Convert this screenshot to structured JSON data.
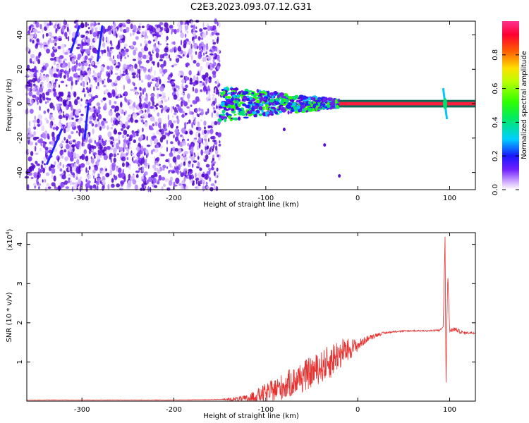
{
  "title": "C2E3.2023.093.07.12.G31",
  "colors": {
    "axis": "#000000",
    "snr_line": "#e8302f",
    "colormap": [
      "#ffffff",
      "#e0c8ff",
      "#a060ff",
      "#5a00e0",
      "#2a20ff",
      "#00c8ff",
      "#00e070",
      "#30ff00",
      "#ffe000",
      "#ff7000",
      "#ff0040",
      "#ff3090"
    ]
  },
  "chart_data": [
    {
      "type": "heatmap",
      "xlabel": "Height of straight line (km)",
      "ylabel": "Frequency (Hz)",
      "xlim": [
        -360,
        128
      ],
      "ylim": [
        -50,
        48
      ],
      "xticks": [
        -300,
        -200,
        -100,
        0,
        100
      ],
      "yticks": [
        -40,
        -20,
        0,
        20,
        40
      ],
      "xticklabels": [
        "-300",
        "-200",
        "-100",
        "0",
        "100"
      ],
      "yticklabels": [
        "-40",
        "-20",
        "0",
        "20",
        "40"
      ],
      "colorbar": {
        "label": "Normalized spectral amplitude",
        "range": [
          0,
          1
        ],
        "ticks": [
          0.0,
          0.2,
          0.4,
          0.6,
          0.8
        ],
        "ticklabels": [
          "0.0",
          "0.2",
          "0.4",
          "0.6",
          "0.8"
        ]
      },
      "features": {
        "noise_region_x": [
          -360,
          -150
        ],
        "scatter_region_x": [
          -150,
          -20
        ],
        "carrier_line": {
          "x": [
            -20,
            128
          ],
          "frequency": 0,
          "amplitude": 1.0
        },
        "spike_at_x": 95
      }
    },
    {
      "type": "line",
      "xlabel": "Height of straight line (km)",
      "ylabel": "SNR (10 * v/v)",
      "yscale_label": "(x10",
      "yscale_exp": "4",
      "yscale_close": ")",
      "xlim": [
        -360,
        128
      ],
      "ylim": [
        0,
        4.3
      ],
      "xticks": [
        -300,
        -200,
        -100,
        0,
        100
      ],
      "yticks": [
        1,
        2,
        3,
        4
      ],
      "xticklabels": [
        "-300",
        "-200",
        "-100",
        "0",
        "100"
      ],
      "yticklabels": [
        "1",
        "2",
        "3",
        "4"
      ],
      "series": [
        {
          "x": [
            -360,
            -300,
            -200,
            -150,
            -120,
            -100,
            -80,
            -60,
            -40,
            -30,
            -20,
            -10,
            0,
            10,
            20,
            30,
            40,
            60,
            80,
            90,
            93,
            95,
            96,
            97,
            98,
            100,
            105,
            110,
            115,
            120,
            128
          ],
          "y": [
            0.03,
            0.03,
            0.03,
            0.04,
            0.08,
            0.25,
            0.45,
            0.7,
            0.95,
            1.1,
            1.3,
            1.4,
            1.45,
            1.6,
            1.7,
            1.75,
            1.78,
            1.8,
            1.8,
            1.82,
            1.9,
            4.2,
            0.4,
            2.0,
            3.25,
            1.8,
            1.85,
            1.8,
            1.75,
            1.75,
            1.75
          ],
          "noise_amplitude": [
            0,
            0,
            0,
            0,
            0.1,
            0.25,
            0.35,
            0.4,
            0.4,
            0.45,
            0.4,
            0.3,
            0.15,
            0.08,
            0.05,
            0.03,
            0.02,
            0.02,
            0.02,
            0.03,
            0.0,
            0.0,
            0.0,
            0.0,
            0.0,
            0.05,
            0.06,
            0.05,
            0.04,
            0.03,
            0.03
          ]
        }
      ]
    }
  ]
}
